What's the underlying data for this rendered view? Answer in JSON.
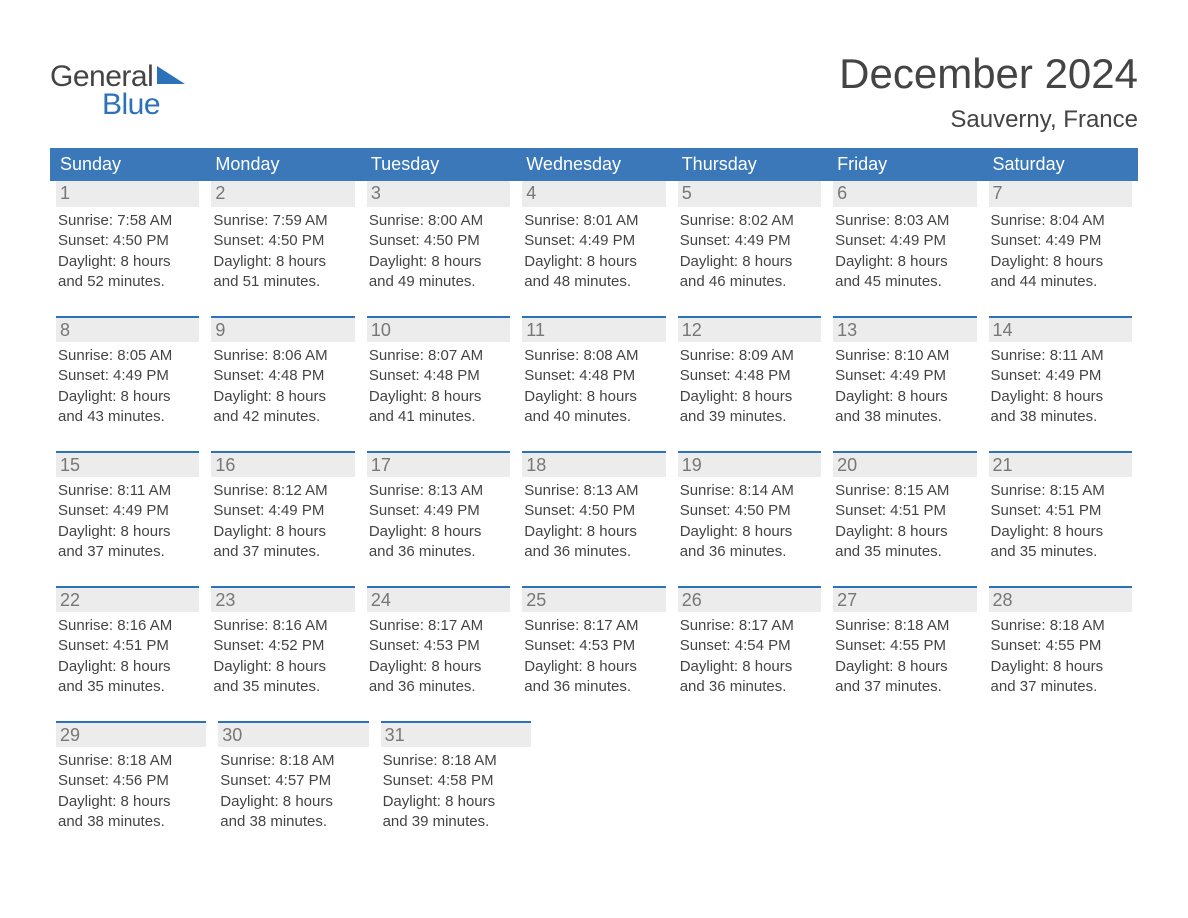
{
  "logo": {
    "text1": "General",
    "text2": "Blue",
    "triangle_color": "#2b72b9"
  },
  "title": "December 2024",
  "location": "Sauverny, France",
  "colors": {
    "header_bg": "#3a78ba",
    "header_text": "#ffffff",
    "daynum_bg": "#ececec",
    "daynum_border": "#2b72b9",
    "text": "#444444",
    "daynum_text": "#777777",
    "background": "#ffffff"
  },
  "fonts": {
    "title_size": 42,
    "location_size": 24,
    "headercell_size": 18,
    "daynum_size": 18,
    "body_size": 15
  },
  "day_headers": [
    "Sunday",
    "Monday",
    "Tuesday",
    "Wednesday",
    "Thursday",
    "Friday",
    "Saturday"
  ],
  "label_sunrise": "Sunrise:",
  "label_sunset": "Sunset:",
  "label_daylight": "Daylight:",
  "weeks": [
    [
      {
        "n": "1",
        "sunrise": "7:58 AM",
        "sunset": "4:50 PM",
        "dl1": "8 hours",
        "dl2": "and 52 minutes."
      },
      {
        "n": "2",
        "sunrise": "7:59 AM",
        "sunset": "4:50 PM",
        "dl1": "8 hours",
        "dl2": "and 51 minutes."
      },
      {
        "n": "3",
        "sunrise": "8:00 AM",
        "sunset": "4:50 PM",
        "dl1": "8 hours",
        "dl2": "and 49 minutes."
      },
      {
        "n": "4",
        "sunrise": "8:01 AM",
        "sunset": "4:49 PM",
        "dl1": "8 hours",
        "dl2": "and 48 minutes."
      },
      {
        "n": "5",
        "sunrise": "8:02 AM",
        "sunset": "4:49 PM",
        "dl1": "8 hours",
        "dl2": "and 46 minutes."
      },
      {
        "n": "6",
        "sunrise": "8:03 AM",
        "sunset": "4:49 PM",
        "dl1": "8 hours",
        "dl2": "and 45 minutes."
      },
      {
        "n": "7",
        "sunrise": "8:04 AM",
        "sunset": "4:49 PM",
        "dl1": "8 hours",
        "dl2": "and 44 minutes."
      }
    ],
    [
      {
        "n": "8",
        "sunrise": "8:05 AM",
        "sunset": "4:49 PM",
        "dl1": "8 hours",
        "dl2": "and 43 minutes."
      },
      {
        "n": "9",
        "sunrise": "8:06 AM",
        "sunset": "4:48 PM",
        "dl1": "8 hours",
        "dl2": "and 42 minutes."
      },
      {
        "n": "10",
        "sunrise": "8:07 AM",
        "sunset": "4:48 PM",
        "dl1": "8 hours",
        "dl2": "and 41 minutes."
      },
      {
        "n": "11",
        "sunrise": "8:08 AM",
        "sunset": "4:48 PM",
        "dl1": "8 hours",
        "dl2": "and 40 minutes."
      },
      {
        "n": "12",
        "sunrise": "8:09 AM",
        "sunset": "4:48 PM",
        "dl1": "8 hours",
        "dl2": "and 39 minutes."
      },
      {
        "n": "13",
        "sunrise": "8:10 AM",
        "sunset": "4:49 PM",
        "dl1": "8 hours",
        "dl2": "and 38 minutes."
      },
      {
        "n": "14",
        "sunrise": "8:11 AM",
        "sunset": "4:49 PM",
        "dl1": "8 hours",
        "dl2": "and 38 minutes."
      }
    ],
    [
      {
        "n": "15",
        "sunrise": "8:11 AM",
        "sunset": "4:49 PM",
        "dl1": "8 hours",
        "dl2": "and 37 minutes."
      },
      {
        "n": "16",
        "sunrise": "8:12 AM",
        "sunset": "4:49 PM",
        "dl1": "8 hours",
        "dl2": "and 37 minutes."
      },
      {
        "n": "17",
        "sunrise": "8:13 AM",
        "sunset": "4:49 PM",
        "dl1": "8 hours",
        "dl2": "and 36 minutes."
      },
      {
        "n": "18",
        "sunrise": "8:13 AM",
        "sunset": "4:50 PM",
        "dl1": "8 hours",
        "dl2": "and 36 minutes."
      },
      {
        "n": "19",
        "sunrise": "8:14 AM",
        "sunset": "4:50 PM",
        "dl1": "8 hours",
        "dl2": "and 36 minutes."
      },
      {
        "n": "20",
        "sunrise": "8:15 AM",
        "sunset": "4:51 PM",
        "dl1": "8 hours",
        "dl2": "and 35 minutes."
      },
      {
        "n": "21",
        "sunrise": "8:15 AM",
        "sunset": "4:51 PM",
        "dl1": "8 hours",
        "dl2": "and 35 minutes."
      }
    ],
    [
      {
        "n": "22",
        "sunrise": "8:16 AM",
        "sunset": "4:51 PM",
        "dl1": "8 hours",
        "dl2": "and 35 minutes."
      },
      {
        "n": "23",
        "sunrise": "8:16 AM",
        "sunset": "4:52 PM",
        "dl1": "8 hours",
        "dl2": "and 35 minutes."
      },
      {
        "n": "24",
        "sunrise": "8:17 AM",
        "sunset": "4:53 PM",
        "dl1": "8 hours",
        "dl2": "and 36 minutes."
      },
      {
        "n": "25",
        "sunrise": "8:17 AM",
        "sunset": "4:53 PM",
        "dl1": "8 hours",
        "dl2": "and 36 minutes."
      },
      {
        "n": "26",
        "sunrise": "8:17 AM",
        "sunset": "4:54 PM",
        "dl1": "8 hours",
        "dl2": "and 36 minutes."
      },
      {
        "n": "27",
        "sunrise": "8:18 AM",
        "sunset": "4:55 PM",
        "dl1": "8 hours",
        "dl2": "and 37 minutes."
      },
      {
        "n": "28",
        "sunrise": "8:18 AM",
        "sunset": "4:55 PM",
        "dl1": "8 hours",
        "dl2": "and 37 minutes."
      }
    ],
    [
      {
        "n": "29",
        "sunrise": "8:18 AM",
        "sunset": "4:56 PM",
        "dl1": "8 hours",
        "dl2": "and 38 minutes."
      },
      {
        "n": "30",
        "sunrise": "8:18 AM",
        "sunset": "4:57 PM",
        "dl1": "8 hours",
        "dl2": "and 38 minutes."
      },
      {
        "n": "31",
        "sunrise": "8:18 AM",
        "sunset": "4:58 PM",
        "dl1": "8 hours",
        "dl2": "and 39 minutes."
      },
      null,
      null,
      null,
      null
    ]
  ]
}
